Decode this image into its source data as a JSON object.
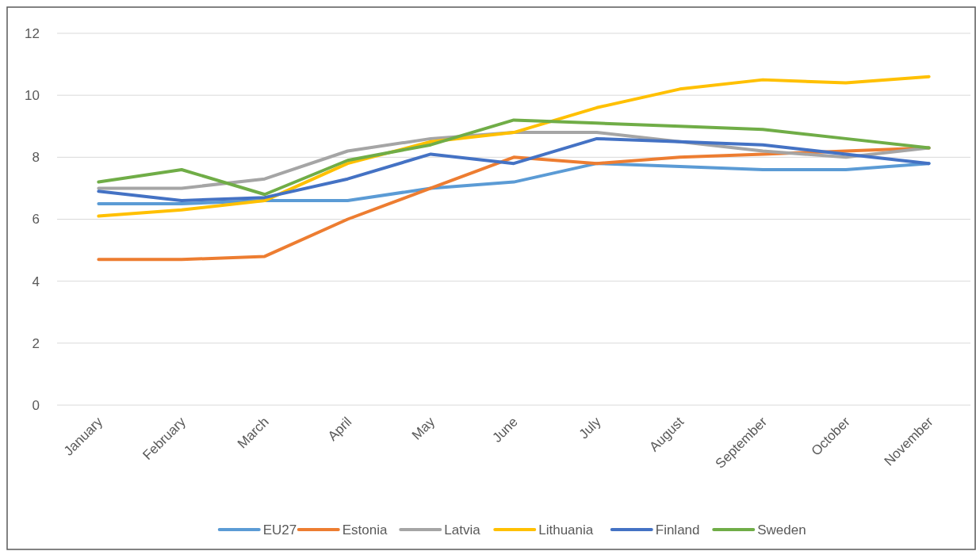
{
  "chart_data": {
    "type": "line",
    "categories": [
      "January",
      "February",
      "March",
      "April",
      "May",
      "June",
      "July",
      "August",
      "September",
      "October",
      "November"
    ],
    "ylim": [
      0,
      12
    ],
    "yticks": [
      0,
      2,
      4,
      6,
      8,
      10,
      12
    ],
    "grid": "y",
    "legend": "bottom",
    "marker": "none",
    "line_style": "solid",
    "series": [
      {
        "name": "EU27",
        "color": "#5b9bd5",
        "values": [
          6.5,
          6.5,
          6.6,
          6.6,
          7.0,
          7.2,
          7.8,
          7.7,
          7.6,
          7.6,
          7.8
        ]
      },
      {
        "name": "Estonia",
        "color": "#ed7d31",
        "values": [
          4.7,
          4.7,
          4.8,
          6.0,
          7.0,
          8.0,
          7.8,
          8.0,
          8.1,
          8.2,
          8.3
        ]
      },
      {
        "name": "Latvia",
        "color": "#a5a5a5",
        "values": [
          7.0,
          7.0,
          7.3,
          8.2,
          8.6,
          8.8,
          8.8,
          8.5,
          8.2,
          8.0,
          8.3
        ]
      },
      {
        "name": "Lithuania",
        "color": "#ffc000",
        "values": [
          6.1,
          6.3,
          6.6,
          7.8,
          8.5,
          8.8,
          9.6,
          10.2,
          10.5,
          10.4,
          10.6
        ]
      },
      {
        "name": "Finland",
        "color": "#4472c4",
        "values": [
          6.9,
          6.6,
          6.7,
          7.3,
          8.1,
          7.8,
          8.6,
          8.5,
          8.4,
          8.1,
          7.8
        ]
      },
      {
        "name": "Sweden",
        "color": "#70ad47",
        "values": [
          7.2,
          7.6,
          6.8,
          7.9,
          8.4,
          9.2,
          9.1,
          9.0,
          8.9,
          8.6,
          8.3
        ]
      }
    ]
  }
}
